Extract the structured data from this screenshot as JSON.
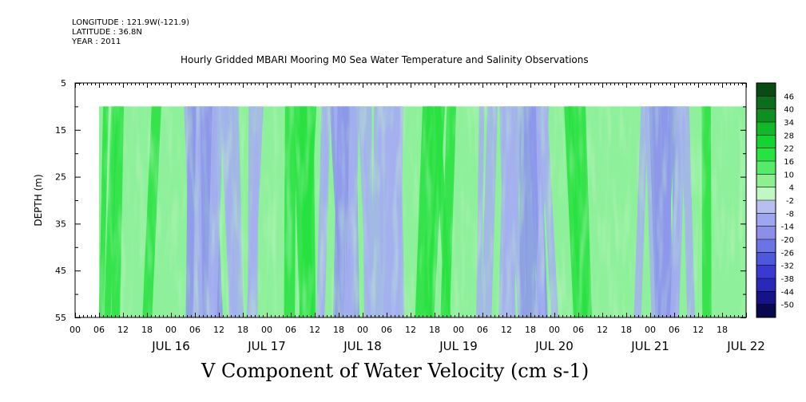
{
  "header": {
    "longitude": "LONGITUDE : 121.9W(-121.9)",
    "latitude": "LATITUDE : 36.8N",
    "year": "YEAR : 2011"
  },
  "chart_data": {
    "type": "heatmap",
    "title": "Hourly Gridded MBARI Mooring M0 Sea Water Temperature and Salinity Observations",
    "variable": "V Component of Water Velocity (cm s-1)",
    "ylabel": "DEPTH (m)",
    "yaxis_inverted": true,
    "ylim": [
      5,
      55
    ],
    "y_ticks": [
      5,
      15,
      25,
      35,
      45,
      55
    ],
    "data_depth_range": [
      10,
      55
    ],
    "x_hour_tick_labels": [
      "00",
      "06",
      "12",
      "18",
      "00",
      "06",
      "12",
      "18",
      "00",
      "06",
      "12",
      "18",
      "00",
      "06",
      "12",
      "18",
      "00",
      "06",
      "12",
      "18",
      "00",
      "06",
      "12",
      "18",
      "00",
      "06",
      "12",
      "18"
    ],
    "x_day_labels": [
      "JUL 16",
      "JUL 17",
      "JUL 18",
      "JUL 19",
      "JUL 20",
      "JUL 21",
      "JUL 22"
    ],
    "x_start_date": "2011-07-15T18:00",
    "data_start_hour": 6,
    "colorbar_levels": [
      "46",
      "40",
      "34",
      "28",
      "22",
      "16",
      "10",
      "4",
      "-2",
      "-8",
      "-14",
      "-20",
      "-26",
      "-32",
      "-38",
      "-44",
      "-50"
    ],
    "colorbar_colors": [
      "#0a4a14",
      "#0c6e1c",
      "#0e8f22",
      "#10b82a",
      "#14d432",
      "#28e242",
      "#55ea6a",
      "#8cf091",
      "#c0f7c2",
      "#b8bfef",
      "#9da6ee",
      "#8c8ee8",
      "#6b74e2",
      "#4e58dc",
      "#3a3ad2",
      "#2a28b8",
      "#141488",
      "#08084e"
    ],
    "grid": false,
    "legend_position": "right"
  }
}
